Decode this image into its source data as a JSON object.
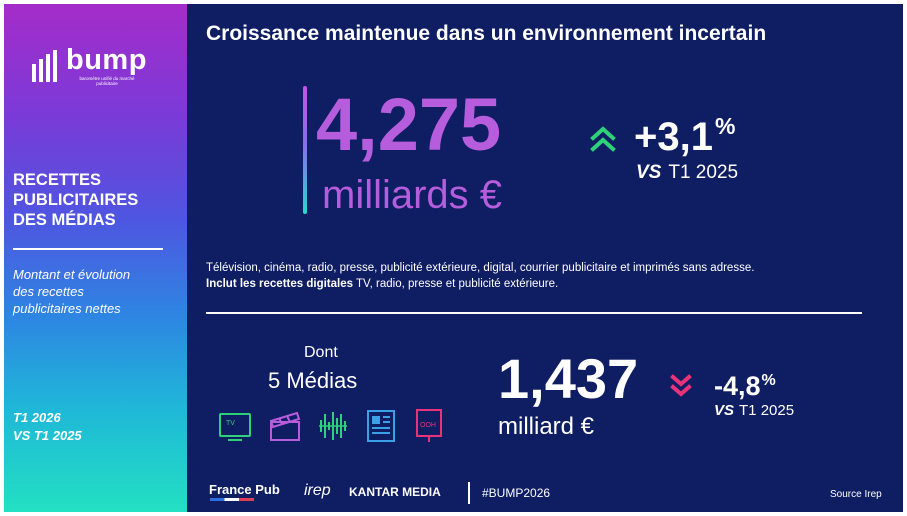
{
  "colors": {
    "background": "#0f1d63",
    "accent_purple": "#b55ddc",
    "up_green": "#2fd07a",
    "down_pink": "#e8337a",
    "icon_tv": "#2fd07a",
    "icon_cinema": "#b55ddc",
    "icon_radio": "#2fd07a",
    "icon_press": "#3aa0e8",
    "icon_ooh": "#e8337a"
  },
  "sidebar": {
    "logo": {
      "word": "bump",
      "tagline": "baromètre unifié du marché publicitaire",
      "icon": "bump-bars-icon"
    },
    "title_lines": [
      "RECETTES",
      "PUBLICITAIRES",
      "DES MÉDIAS"
    ],
    "description_lines": [
      "Montant et évolution",
      "des recettes",
      "publicitaires nettes"
    ],
    "period_lines": [
      "T1 2026",
      "VS T1 2025"
    ]
  },
  "main": {
    "title": "Croissance maintenue dans un environnement incertain",
    "total": {
      "value": "4,275",
      "unit": "milliards €",
      "change": "+3,1",
      "change_unit": "%",
      "vs_label": "VS",
      "vs_period": "T1 2025",
      "trend_icon": "double-chevron-up-icon"
    },
    "info_line1": "Télévision, cinéma, radio, presse, publicité extérieure, digital, courrier publicitaire et imprimés sans adresse.",
    "info_line2_bold": "Inclut les recettes digitales",
    "info_line2_rest": " TV, radio, presse et publicité extérieure.",
    "five_media": {
      "label_top": "Dont",
      "label": "5 Médias",
      "value": "1,437",
      "unit": "milliard €",
      "change": "-4,8",
      "change_unit": "%",
      "vs_label": "VS",
      "vs_period": "T1 2025",
      "trend_icon": "double-chevron-down-icon",
      "icons": [
        {
          "name": "tv-icon",
          "label": "TV"
        },
        {
          "name": "cinema-clapper-icon"
        },
        {
          "name": "radio-waves-icon"
        },
        {
          "name": "press-newspaper-icon"
        },
        {
          "name": "ooh-billboard-icon",
          "label": "OOH"
        }
      ]
    }
  },
  "footer": {
    "france_pub": "France Pub",
    "irep": "irep",
    "kantar": "KANTAR MEDIA",
    "hashtag": "#BUMP2026",
    "source": "Source Irep"
  }
}
